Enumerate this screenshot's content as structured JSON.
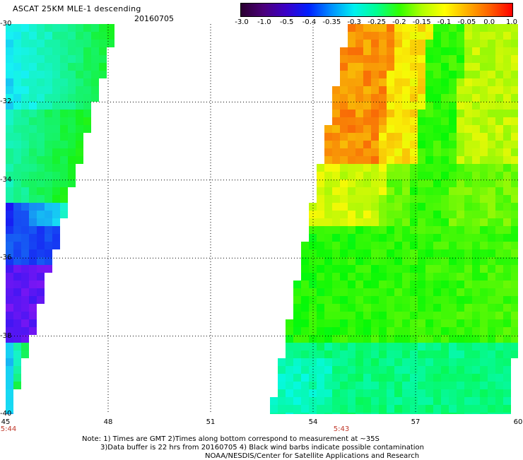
{
  "header": {
    "title": "ASCAT 25KM MLE-1 descending",
    "date": "20160705"
  },
  "colorbar": {
    "labels": [
      "-3.0",
      "-1.0",
      "-0.5",
      "-0.4",
      "-0.35",
      "-0.3",
      "-0.25",
      "-0.2",
      "-0.15",
      "-0.1",
      "-0.05",
      "0.0",
      "1.0"
    ]
  },
  "axes": {
    "x_labels": [
      "45",
      "48",
      "51",
      "54",
      "57",
      "60"
    ],
    "y_labels": [
      "-30",
      "-32",
      "-34",
      "-36",
      "-38",
      "-40"
    ],
    "x_range": [
      45,
      60
    ],
    "y_range": [
      -30,
      -40
    ]
  },
  "pass_times": [
    "5:44",
    "5:43"
  ],
  "notes": {
    "line1": "Note: 1) Times are GMT 2)Times along bottom correspond to measurement at ~35S",
    "line2": "3)Data buffer is 22 hrs from 20160705 4) Black wind barbs indicate possible contamination",
    "line3": "NOAA/NESDIS/Center for Satellite Applications and Research"
  }
}
